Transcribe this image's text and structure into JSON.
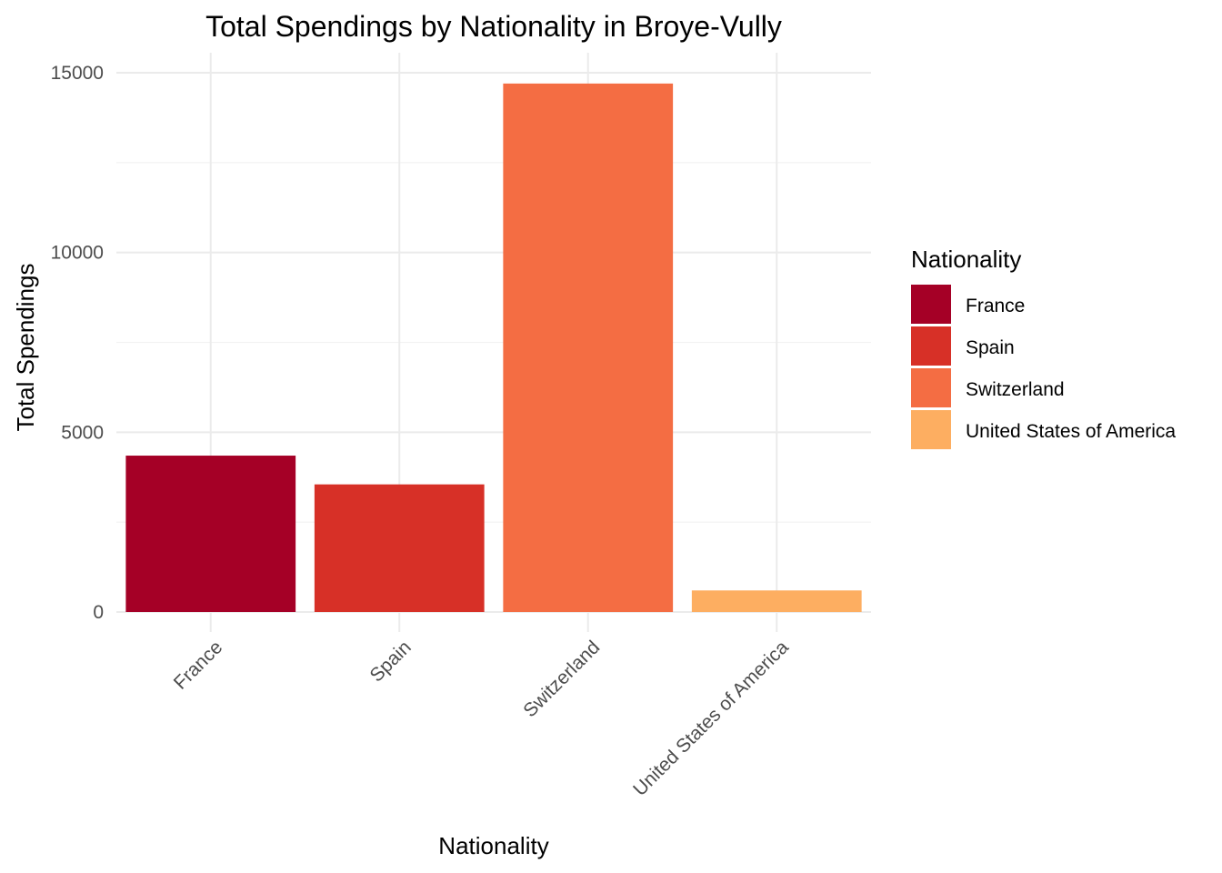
{
  "chart_data": {
    "type": "bar",
    "title": "Total Spendings by Nationality in Broye-Vully",
    "xlabel": "Nationality",
    "ylabel": "Total Spendings",
    "categories": [
      "France",
      "Spain",
      "Switzerland",
      "United States of America"
    ],
    "values": [
      4350,
      3550,
      14700,
      600
    ],
    "colors": [
      "#a50026",
      "#d73027",
      "#f46d43",
      "#fdae61"
    ],
    "ylim": [
      0,
      15000
    ],
    "yticks": [
      0,
      5000,
      10000,
      15000
    ],
    "ytick_labels": [
      "0",
      "5000",
      "10000",
      "15000"
    ],
    "grid": true,
    "legend": {
      "title": "Nationality",
      "placement": "right",
      "entries": [
        "France",
        "Spain",
        "Switzerland",
        "United States of America"
      ]
    }
  }
}
